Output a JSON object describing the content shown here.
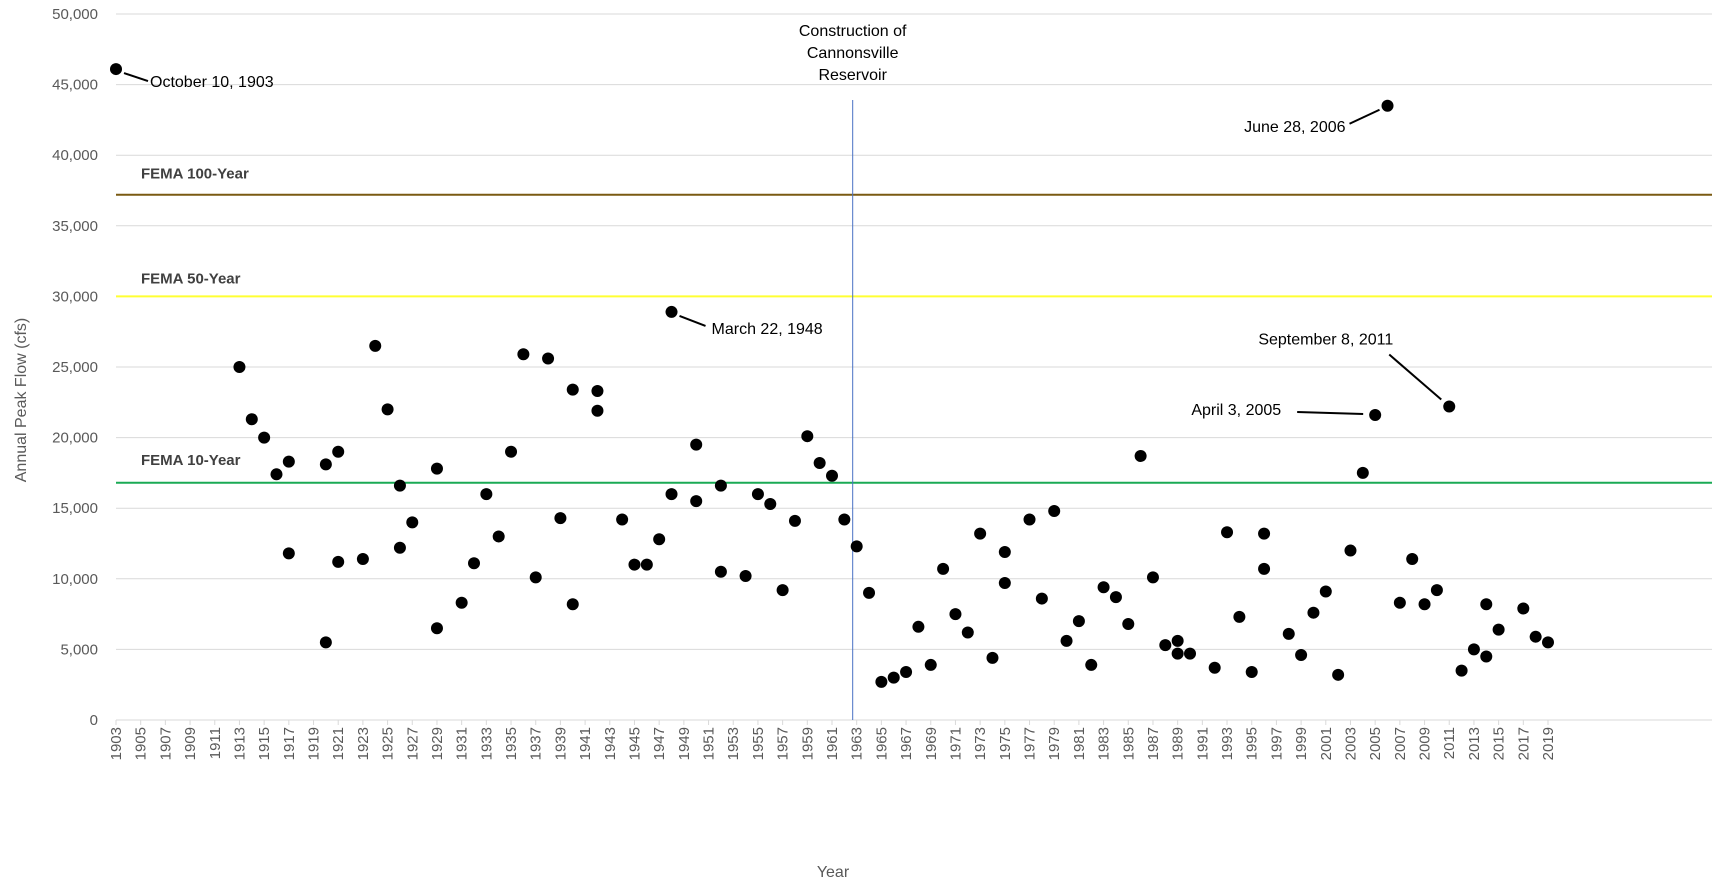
{
  "chart_data": {
    "type": "scatter",
    "xlabel": "Year",
    "ylabel": "Annual Peak Flow (cfs)",
    "ylim": [
      0,
      50000
    ],
    "yticks": [
      0,
      5000,
      10000,
      15000,
      20000,
      25000,
      30000,
      35000,
      40000,
      45000,
      50000
    ],
    "ytick_labels": [
      "0",
      "5,000",
      "10,000",
      "15,000",
      "20,000",
      "25,000",
      "30,000",
      "35,000",
      "40,000",
      "45,000",
      "50,000"
    ],
    "xlim": [
      1903,
      2019
    ],
    "xticks": [
      1903,
      1905,
      1907,
      1909,
      1911,
      1913,
      1915,
      1917,
      1919,
      1921,
      1923,
      1925,
      1927,
      1929,
      1931,
      1933,
      1935,
      1937,
      1939,
      1941,
      1943,
      1945,
      1947,
      1949,
      1951,
      1953,
      1955,
      1957,
      1959,
      1961,
      1963,
      1965,
      1967,
      1969,
      1971,
      1973,
      1975,
      1977,
      1979,
      1981,
      1983,
      1985,
      1987,
      1989,
      1991,
      1993,
      1995,
      1997,
      1999,
      2001,
      2003,
      2005,
      2007,
      2009,
      2011,
      2013,
      2015,
      2017,
      2019
    ],
    "grid": true,
    "point_color": "#000000",
    "points": [
      {
        "x": 1903,
        "y": 46100
      },
      {
        "x": 1913,
        "y": 25000
      },
      {
        "x": 1914,
        "y": 21300
      },
      {
        "x": 1915,
        "y": 20000
      },
      {
        "x": 1916,
        "y": 17400
      },
      {
        "x": 1917,
        "y": 18300
      },
      {
        "x": 1917,
        "y": 11800
      },
      {
        "x": 1920,
        "y": 5500
      },
      {
        "x": 1920,
        "y": 18100
      },
      {
        "x": 1921,
        "y": 19000
      },
      {
        "x": 1921,
        "y": 11200
      },
      {
        "x": 1923,
        "y": 11400
      },
      {
        "x": 1924,
        "y": 26500
      },
      {
        "x": 1925,
        "y": 22000
      },
      {
        "x": 1926,
        "y": 16600
      },
      {
        "x": 1926,
        "y": 12200
      },
      {
        "x": 1927,
        "y": 14000
      },
      {
        "x": 1929,
        "y": 6500
      },
      {
        "x": 1929,
        "y": 17800
      },
      {
        "x": 1931,
        "y": 8300
      },
      {
        "x": 1932,
        "y": 11100
      },
      {
        "x": 1933,
        "y": 16000
      },
      {
        "x": 1934,
        "y": 13000
      },
      {
        "x": 1935,
        "y": 19000
      },
      {
        "x": 1936,
        "y": 25900
      },
      {
        "x": 1937,
        "y": 10100
      },
      {
        "x": 1938,
        "y": 25600
      },
      {
        "x": 1939,
        "y": 14300
      },
      {
        "x": 1940,
        "y": 23400
      },
      {
        "x": 1940,
        "y": 8200
      },
      {
        "x": 1942,
        "y": 23300
      },
      {
        "x": 1942,
        "y": 21900
      },
      {
        "x": 1944,
        "y": 14200
      },
      {
        "x": 1945,
        "y": 11000
      },
      {
        "x": 1946,
        "y": 11000
      },
      {
        "x": 1947,
        "y": 12800
      },
      {
        "x": 1948,
        "y": 28900
      },
      {
        "x": 1948,
        "y": 16000
      },
      {
        "x": 1950,
        "y": 19500
      },
      {
        "x": 1950,
        "y": 15500
      },
      {
        "x": 1952,
        "y": 16600
      },
      {
        "x": 1952,
        "y": 10500
      },
      {
        "x": 1954,
        "y": 10200
      },
      {
        "x": 1955,
        "y": 16000
      },
      {
        "x": 1956,
        "y": 15300
      },
      {
        "x": 1957,
        "y": 9200
      },
      {
        "x": 1958,
        "y": 14100
      },
      {
        "x": 1959,
        "y": 20100
      },
      {
        "x": 1960,
        "y": 18200
      },
      {
        "x": 1961,
        "y": 17300
      },
      {
        "x": 1962,
        "y": 14200
      },
      {
        "x": 1963,
        "y": 12300
      },
      {
        "x": 1964,
        "y": 9000
      },
      {
        "x": 1965,
        "y": 2700
      },
      {
        "x": 1966,
        "y": 3000
      },
      {
        "x": 1967,
        "y": 3400
      },
      {
        "x": 1968,
        "y": 6600
      },
      {
        "x": 1969,
        "y": 3900
      },
      {
        "x": 1970,
        "y": 10700
      },
      {
        "x": 1971,
        "y": 7500
      },
      {
        "x": 1972,
        "y": 6200
      },
      {
        "x": 1973,
        "y": 13200
      },
      {
        "x": 1974,
        "y": 4400
      },
      {
        "x": 1975,
        "y": 11900
      },
      {
        "x": 1975,
        "y": 9700
      },
      {
        "x": 1977,
        "y": 14200
      },
      {
        "x": 1978,
        "y": 8600
      },
      {
        "x": 1979,
        "y": 14800
      },
      {
        "x": 1980,
        "y": 5600
      },
      {
        "x": 1981,
        "y": 7000
      },
      {
        "x": 1982,
        "y": 3900
      },
      {
        "x": 1983,
        "y": 9400
      },
      {
        "x": 1984,
        "y": 8700
      },
      {
        "x": 1985,
        "y": 6800
      },
      {
        "x": 1986,
        "y": 18700
      },
      {
        "x": 1987,
        "y": 10100
      },
      {
        "x": 1988,
        "y": 5300
      },
      {
        "x": 1989,
        "y": 5600
      },
      {
        "x": 1989,
        "y": 4700
      },
      {
        "x": 1990,
        "y": 4700
      },
      {
        "x": 1992,
        "y": 3700
      },
      {
        "x": 1993,
        "y": 13300
      },
      {
        "x": 1994,
        "y": 7300
      },
      {
        "x": 1995,
        "y": 3400
      },
      {
        "x": 1996,
        "y": 13200
      },
      {
        "x": 1996,
        "y": 10700
      },
      {
        "x": 1998,
        "y": 6100
      },
      {
        "x": 1999,
        "y": 4600
      },
      {
        "x": 2000,
        "y": 7600
      },
      {
        "x": 2001,
        "y": 9100
      },
      {
        "x": 2002,
        "y": 3200
      },
      {
        "x": 2003,
        "y": 12000
      },
      {
        "x": 2004,
        "y": 17500
      },
      {
        "x": 2005,
        "y": 21600
      },
      {
        "x": 2006,
        "y": 43500
      },
      {
        "x": 2007,
        "y": 8300
      },
      {
        "x": 2008,
        "y": 11400
      },
      {
        "x": 2009,
        "y": 8200
      },
      {
        "x": 2010,
        "y": 9200
      },
      {
        "x": 2011,
        "y": 22200
      },
      {
        "x": 2012,
        "y": 3500
      },
      {
        "x": 2013,
        "y": 5000
      },
      {
        "x": 2014,
        "y": 8200
      },
      {
        "x": 2014,
        "y": 4500
      },
      {
        "x": 2015,
        "y": 6400
      },
      {
        "x": 2017,
        "y": 7900
      },
      {
        "x": 2018,
        "y": 5900
      },
      {
        "x": 2019,
        "y": 5500
      }
    ],
    "reference_lines": [
      {
        "name": "FEMA 100-Year",
        "y": 37200,
        "color": "#7a5a12"
      },
      {
        "name": "FEMA 50-Year",
        "y": 30000,
        "color": "#ffff33"
      },
      {
        "name": "FEMA 10-Year",
        "y": 16800,
        "color": "#1aaa55"
      }
    ],
    "vertical_line": {
      "x": 1963,
      "color": "#4a72c4",
      "label_lines": [
        "Construction of",
        "Cannonsville",
        "Reservoir"
      ]
    },
    "annotations": [
      {
        "text": "October 10, 1903",
        "x": 1903,
        "y": 46100
      },
      {
        "text": "March 22, 1948",
        "x": 1948,
        "y": 28900
      },
      {
        "text": "June 28, 2006",
        "x": 2006,
        "y": 43500
      },
      {
        "text": "September 8, 2011",
        "x": 2011,
        "y": 22200
      },
      {
        "text": "April 3, 2005",
        "x": 2005,
        "y": 21600
      }
    ]
  }
}
